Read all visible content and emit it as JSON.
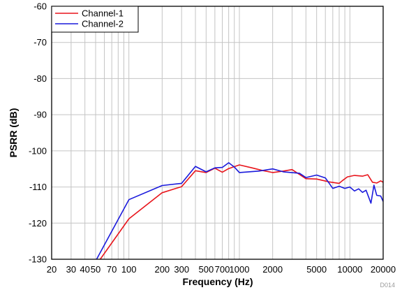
{
  "chart_data": {
    "type": "line",
    "title": "",
    "xlabel": "Frequency (Hz)",
    "ylabel": "PSRR (dB)",
    "x_scale": "log",
    "xlim": [
      20,
      20000
    ],
    "ylim": [
      -130,
      -60
    ],
    "x_ticks": [
      20,
      30,
      40,
      50,
      70,
      100,
      200,
      300,
      500,
      700,
      1000,
      2000,
      5000,
      10000,
      20000
    ],
    "x_tick_labels": [
      "20",
      "30",
      "40",
      "50",
      "70",
      "100",
      "200",
      "300",
      "500",
      "700",
      "1000",
      "2000",
      "5000",
      "10000",
      "20000"
    ],
    "y_ticks": [
      -130,
      -120,
      -110,
      -100,
      -90,
      -80,
      -70,
      -60
    ],
    "y_tick_labels": [
      "-130",
      "-120",
      "-110",
      "-100",
      "-90",
      "-80",
      "-70",
      "-60"
    ],
    "grid": true,
    "legend_position": "top-left",
    "watermark": "D014",
    "series": [
      {
        "name": "Channel-1",
        "color": "#e8141b",
        "points": [
          [
            55,
            -130
          ],
          [
            100,
            -118.8
          ],
          [
            200,
            -111.6
          ],
          [
            300,
            -109.9
          ],
          [
            400,
            -105.5
          ],
          [
            500,
            -106.0
          ],
          [
            600,
            -104.8
          ],
          [
            700,
            -105.9
          ],
          [
            800,
            -104.9
          ],
          [
            1000,
            -103.9
          ],
          [
            1300,
            -104.7
          ],
          [
            1600,
            -105.4
          ],
          [
            2000,
            -106.0
          ],
          [
            2500,
            -105.6
          ],
          [
            3000,
            -105.2
          ],
          [
            4000,
            -107.7
          ],
          [
            5000,
            -107.8
          ],
          [
            6500,
            -108.6
          ],
          [
            8000,
            -109.0
          ],
          [
            8500,
            -108.3
          ],
          [
            9500,
            -107.2
          ],
          [
            11000,
            -106.8
          ],
          [
            13000,
            -107.0
          ],
          [
            14500,
            -106.6
          ],
          [
            16000,
            -108.7
          ],
          [
            17500,
            -108.9
          ],
          [
            19000,
            -108.3
          ],
          [
            20000,
            -108.7
          ],
          [
            20500,
            -110.0
          ],
          [
            21000,
            -111.8
          ]
        ]
      },
      {
        "name": "Channel-2",
        "color": "#1a1adc",
        "points": [
          [
            51,
            -130
          ],
          [
            100,
            -113.5
          ],
          [
            200,
            -109.6
          ],
          [
            300,
            -109.0
          ],
          [
            400,
            -104.3
          ],
          [
            500,
            -105.8
          ],
          [
            600,
            -104.7
          ],
          [
            700,
            -104.6
          ],
          [
            800,
            -103.3
          ],
          [
            900,
            -104.5
          ],
          [
            1000,
            -106.0
          ],
          [
            1500,
            -105.6
          ],
          [
            2000,
            -105.0
          ],
          [
            2500,
            -105.8
          ],
          [
            3500,
            -106.2
          ],
          [
            4000,
            -107.4
          ],
          [
            5000,
            -106.7
          ],
          [
            6000,
            -107.5
          ],
          [
            7000,
            -110.4
          ],
          [
            8000,
            -109.8
          ],
          [
            9000,
            -110.4
          ],
          [
            10000,
            -110.0
          ],
          [
            11000,
            -111.1
          ],
          [
            12000,
            -110.5
          ],
          [
            13000,
            -111.5
          ],
          [
            14000,
            -110.9
          ],
          [
            15500,
            -114.5
          ],
          [
            16500,
            -109.5
          ],
          [
            17500,
            -112.3
          ],
          [
            19000,
            -112.5
          ],
          [
            20000,
            -114.0
          ],
          [
            20500,
            -112.8
          ],
          [
            21000,
            -114.5
          ]
        ]
      }
    ]
  }
}
